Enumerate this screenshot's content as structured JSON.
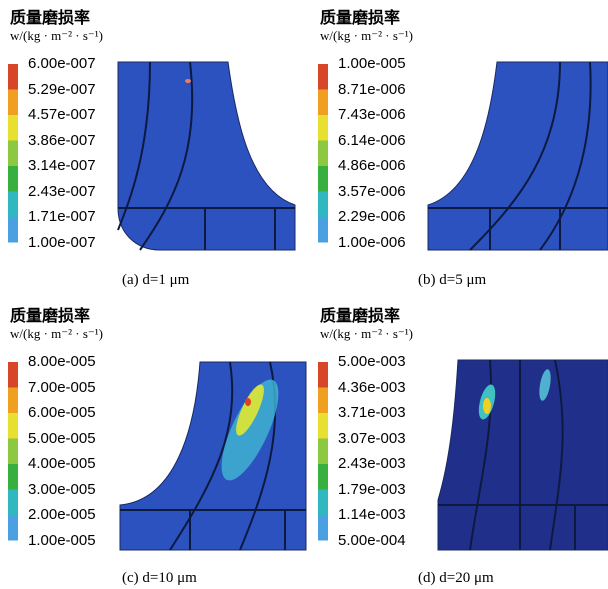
{
  "panels": [
    {
      "title": "质量磨损率",
      "unit": "w/(kg · m⁻² · s⁻¹)",
      "legend": [
        "6.00e-007",
        "5.29e-007",
        "4.57e-007",
        "3.86e-007",
        "3.14e-007",
        "2.43e-007",
        "1.71e-007",
        "1.00e-007"
      ],
      "caption": "(a) d=1 μm"
    },
    {
      "title": "质量磨损率",
      "unit": "w/(kg · m⁻² · s⁻¹)",
      "legend": [
        "1.00e-005",
        "8.71e-006",
        "7.43e-006",
        "6.14e-006",
        "4.86e-006",
        "3.57e-006",
        "2.29e-006",
        "1.00e-006"
      ],
      "caption": "(b) d=5 μm"
    },
    {
      "title": "质量磨损率",
      "unit": "w/(kg · m⁻² · s⁻¹)",
      "legend": [
        "8.00e-005",
        "7.00e-005",
        "6.00e-005",
        "5.00e-005",
        "4.00e-005",
        "3.00e-005",
        "2.00e-005",
        "1.00e-005"
      ],
      "caption": "(c) d=10 μm"
    },
    {
      "title": "质量磨损率",
      "unit": "w/(kg · m⁻² · s⁻¹)",
      "legend": [
        "5.00e-003",
        "4.36e-003",
        "3.71e-003",
        "3.07e-003",
        "2.43e-003",
        "1.79e-003",
        "1.14e-003",
        "5.00e-004"
      ],
      "caption": "(d) d=20 μm"
    }
  ]
}
